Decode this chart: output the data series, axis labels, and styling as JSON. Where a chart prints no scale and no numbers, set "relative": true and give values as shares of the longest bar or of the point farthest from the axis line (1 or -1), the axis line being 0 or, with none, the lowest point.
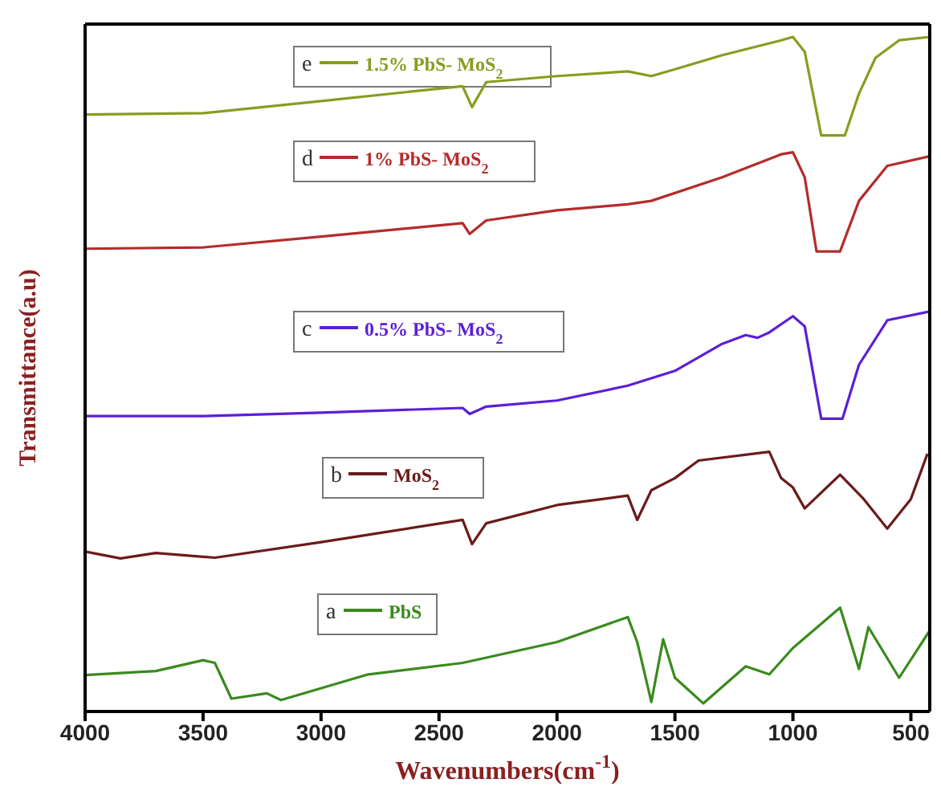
{
  "chart_data": {
    "type": "line",
    "relative": true,
    "xlabel": "Wavenumbers(cm$^{-1}$)",
    "ylabel": "Transmittance(a.u)",
    "xlim": [
      4000,
      420
    ],
    "xticks": [
      4000,
      3500,
      3000,
      2500,
      2000,
      1500,
      1000,
      500
    ],
    "legend": "left",
    "marker": "none",
    "line_style": "solid",
    "annotations": [
      "a",
      "b",
      "c",
      "d",
      "e"
    ],
    "series": [
      {
        "name": "PbS",
        "color": "#3a8a1e",
        "x": [
          4000,
          3700,
          3500,
          3450,
          3380,
          3230,
          3170,
          2800,
          2400,
          2000,
          1700,
          1660,
          1600,
          1550,
          1500,
          1380,
          1200,
          1100,
          1000,
          800,
          720,
          680,
          550,
          420
        ],
        "values": [
          0.054,
          0.06,
          0.076,
          0.072,
          0.019,
          0.027,
          0.017,
          0.055,
          0.072,
          0.103,
          0.14,
          0.103,
          0.014,
          0.107,
          0.05,
          0.012,
          0.067,
          0.055,
          0.094,
          0.154,
          0.063,
          0.125,
          0.05,
          0.12
        ]
      },
      {
        "name": "MoS$_{2}$",
        "color": "#6b1a1a",
        "x": [
          4000,
          3850,
          3700,
          3450,
          3000,
          2400,
          2360,
          2300,
          2000,
          1700,
          1660,
          1600,
          1500,
          1400,
          1100,
          1050,
          1000,
          950,
          800,
          700,
          600,
          500,
          430
        ],
        "values": [
          0.237,
          0.227,
          0.235,
          0.228,
          0.251,
          0.284,
          0.248,
          0.279,
          0.306,
          0.32,
          0.284,
          0.328,
          0.346,
          0.372,
          0.385,
          0.346,
          0.332,
          0.301,
          0.351,
          0.315,
          0.271,
          0.315,
          0.382
        ]
      },
      {
        "name": "0.5% PbS- MoS$_{2}$",
        "color": "#5b1fd6",
        "x": [
          4000,
          3500,
          3000,
          2400,
          2370,
          2300,
          2000,
          1700,
          1500,
          1300,
          1200,
          1150,
          1100,
          1000,
          950,
          880,
          790,
          720,
          600,
          420
        ],
        "values": [
          0.438,
          0.438,
          0.443,
          0.45,
          0.441,
          0.452,
          0.461,
          0.483,
          0.505,
          0.545,
          0.558,
          0.554,
          0.562,
          0.586,
          0.571,
          0.434,
          0.434,
          0.514,
          0.58,
          0.593
        ]
      },
      {
        "name": "1% PbS- MoS$_{2}$",
        "color": "#b52b2b",
        "x": [
          4000,
          3500,
          3000,
          2400,
          2370,
          2300,
          2000,
          1700,
          1600,
          1300,
          1050,
          1000,
          950,
          900,
          800,
          720,
          600,
          420
        ],
        "values": [
          0.686,
          0.688,
          0.704,
          0.724,
          0.708,
          0.728,
          0.743,
          0.752,
          0.757,
          0.792,
          0.826,
          0.829,
          0.792,
          0.682,
          0.682,
          0.757,
          0.809,
          0.823
        ]
      },
      {
        "name": "1.5% PbS- MoS$_{2}$",
        "color": "#8b9b1f",
        "x": [
          4000,
          3500,
          3000,
          2400,
          2360,
          2300,
          2000,
          1700,
          1600,
          1500,
          1300,
          1050,
          1000,
          950,
          880,
          780,
          720,
          650,
          550,
          420
        ],
        "values": [
          0.885,
          0.887,
          0.905,
          0.927,
          0.896,
          0.933,
          0.942,
          0.949,
          0.942,
          0.952,
          0.973,
          0.995,
          1.0,
          0.978,
          0.854,
          0.854,
          0.916,
          0.969,
          0.995,
          1.0
        ]
      }
    ]
  }
}
